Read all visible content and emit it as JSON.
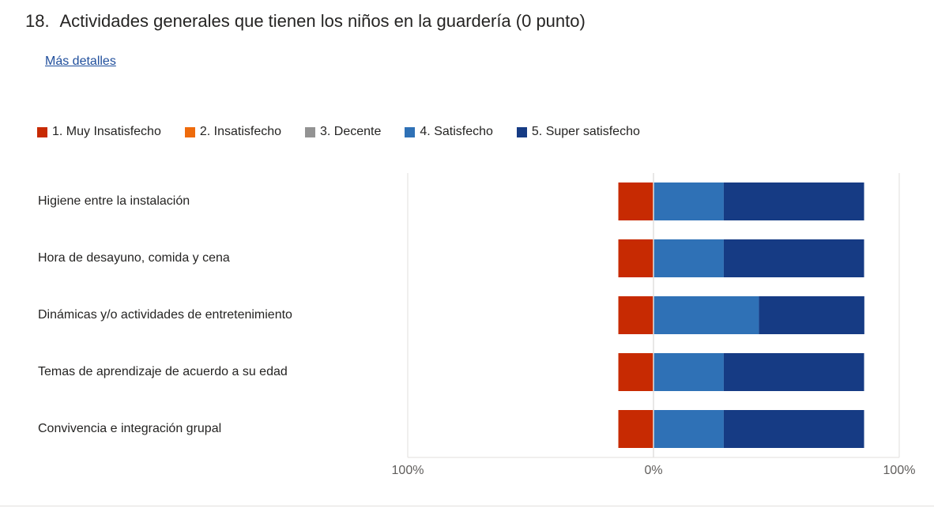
{
  "question": {
    "number": "18.",
    "title": "Actividades generales que tienen los niños en la guardería (0 punto)",
    "details_link": "Más detalles"
  },
  "chart_data": {
    "type": "bar",
    "orientation": "horizontal",
    "stacked": true,
    "diverging": true,
    "categories": [
      "Higiene entre la instalación",
      "Hora de desayuno, comida y cena",
      "Dinámicas y/o actividades de entretenimiento",
      "Temas de aprendizaje de acuerdo a su edad",
      "Convivencia e integración grupal"
    ],
    "series": [
      {
        "name": "1. Muy Insatisfecho",
        "color": "#c72a02",
        "values": [
          14.3,
          14.3,
          14.3,
          14.3,
          14.3
        ]
      },
      {
        "name": "2. Insatisfecho",
        "color": "#ee6b0c",
        "values": [
          0,
          0,
          0,
          0,
          0
        ]
      },
      {
        "name": "3. Decente",
        "color": "#939393",
        "values": [
          0,
          0,
          0,
          0,
          0
        ]
      },
      {
        "name": "4. Satisfecho",
        "color": "#2f71b6",
        "values": [
          28.6,
          28.6,
          42.9,
          28.6,
          28.6
        ]
      },
      {
        "name": "5. Super satisfecho",
        "color": "#163b84",
        "values": [
          57.1,
          57.1,
          42.9,
          57.1,
          57.1
        ]
      }
    ],
    "negative_series": [
      "1. Muy Insatisfecho",
      "2. Insatisfecho"
    ],
    "xlim": [
      -100,
      100
    ],
    "x_tick_labels": [
      "100%",
      "0%",
      "100%"
    ],
    "legend_position": "top-left",
    "grid": false
  }
}
